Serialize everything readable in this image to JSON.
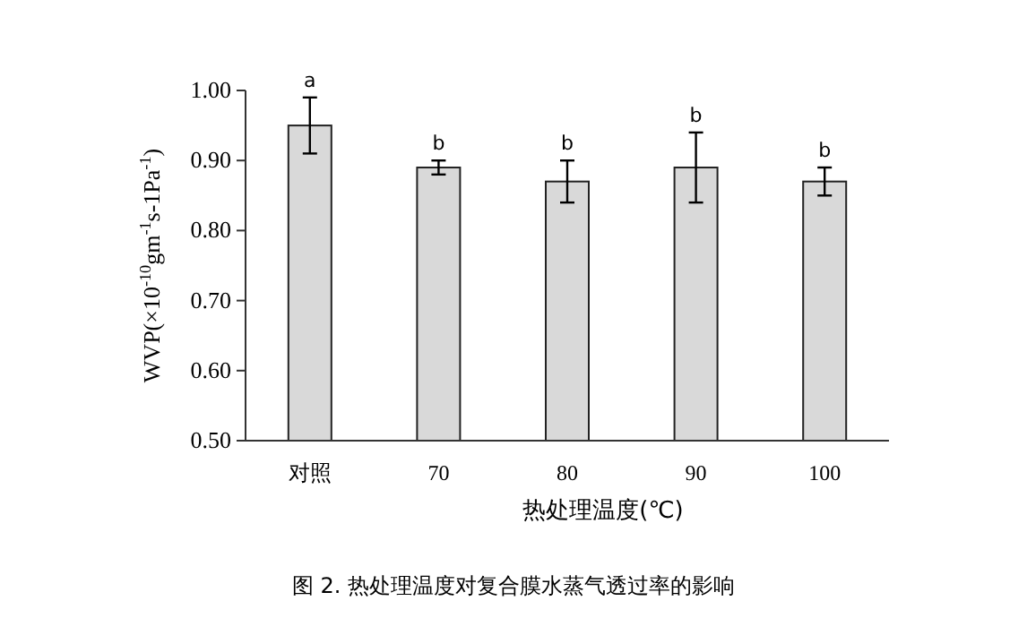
{
  "chart_data": {
    "type": "bar",
    "categories": [
      "对照",
      "70",
      "80",
      "90",
      "100"
    ],
    "values": [
      0.95,
      0.89,
      0.87,
      0.89,
      0.87
    ],
    "errors": [
      0.04,
      0.01,
      0.03,
      0.05,
      0.02
    ],
    "color": "#d9d9d9",
    "xlabel": "热处理温度(℃)",
    "ylabel": "WVP(×10$^{-10}$gm$^{-1}$s-1Pa$^{-1}$)",
    "ylim": [
      0.5,
      1.0
    ],
    "yticks": [
      {
        "value": 0.5,
        "label": "0.50"
      },
      {
        "value": 0.6,
        "label": "0.60"
      },
      {
        "value": 0.7,
        "label": "0.70"
      },
      {
        "value": 0.8,
        "label": "0.80"
      },
      {
        "value": 0.9,
        "label": "0.90"
      },
      {
        "value": 1.0,
        "label": "1.00"
      }
    ],
    "grid": false,
    "annotations": [
      {
        "text": "a",
        "x": "对照",
        "y": 0.99
      },
      {
        "text": "b",
        "x": "70",
        "y": 0.9
      },
      {
        "text": "b",
        "x": "80",
        "y": 0.9
      },
      {
        "text": "b",
        "x": "90",
        "y": 0.94
      },
      {
        "text": "b",
        "x": "100",
        "y": 0.89
      },
      "图 2. 热处理温度对复合膜水蒸气透过率的影响"
    ]
  }
}
